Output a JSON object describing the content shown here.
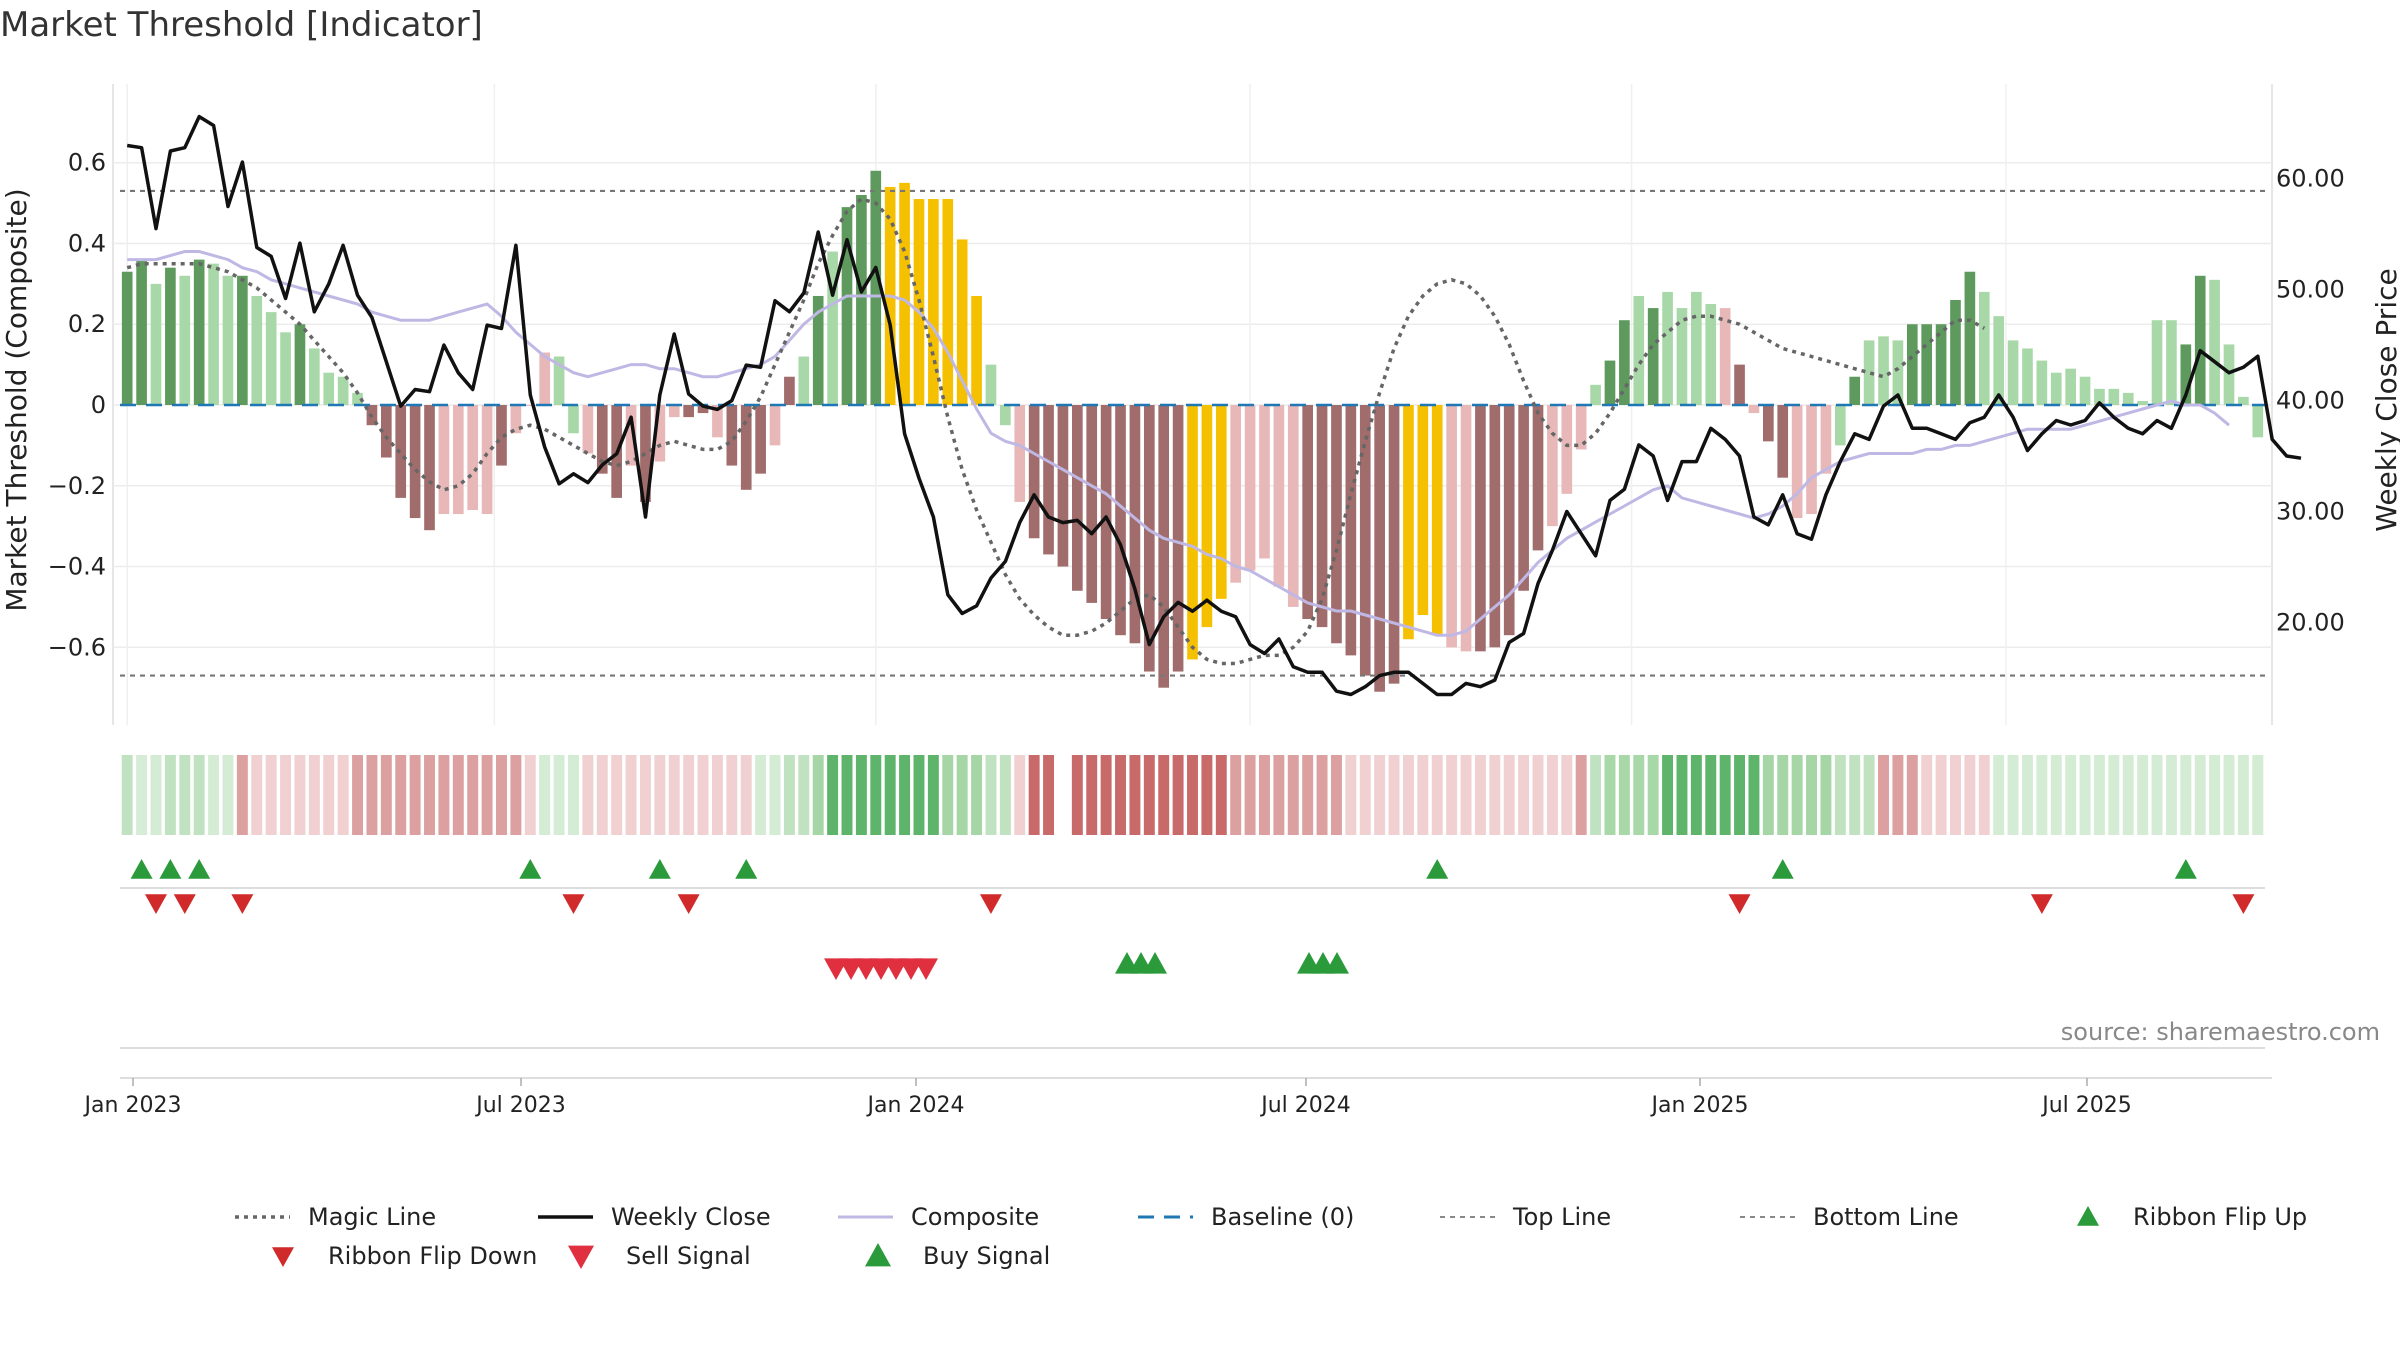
{
  "chart_data": {
    "type": "bar",
    "title": "Market Threshold [Indicator]",
    "ylabel": "Market Threshold (Composite)",
    "y2label": "Weekly Close Price",
    "source": "source: sharemaestro.com",
    "ylim": [
      -0.78,
      0.78
    ],
    "y2lim": [
      11.2,
      68.0
    ],
    "yticks": [
      "0.6",
      "0.4",
      "0.2",
      "0",
      "−0.2",
      "−0.4",
      "−0.6"
    ],
    "y2ticks": [
      "60.00",
      "50.00",
      "40.00",
      "30.00",
      "20.00"
    ],
    "xticks": [
      "Jan 2023",
      "Jul 2023",
      "Jan 2024",
      "Jul 2024",
      "Jan 2025",
      "Jul 2025"
    ],
    "top_line": 0.53,
    "bottom_line": -0.67,
    "baseline": 0,
    "grid": true,
    "legend_position": "bottom",
    "colors": {
      "dark_green": "#5e9a5e",
      "light_green": "#a8d8a8",
      "dark_red": "#a06c6c",
      "light_red": "#e8b8b8",
      "extreme": "#f5c000",
      "close": "#111111",
      "composite": "#c0b8e4",
      "magic": "#666666",
      "baseline": "#1f77b4",
      "flip_up": "#2a9a3a",
      "flip_down": "#d02a2a",
      "sell": "#e03040",
      "buy": "#2a9a3a"
    },
    "composite_bars": [
      0.33,
      0.36,
      0.3,
      0.34,
      0.32,
      0.36,
      0.35,
      0.32,
      0.32,
      0.27,
      0.23,
      0.18,
      0.2,
      0.14,
      0.08,
      0.07,
      0.03,
      -0.05,
      -0.13,
      -0.23,
      -0.28,
      -0.31,
      -0.27,
      -0.27,
      -0.26,
      -0.27,
      -0.15,
      -0.07,
      0,
      0.13,
      0.12,
      -0.07,
      -0.12,
      -0.17,
      -0.23,
      -0.15,
      -0.24,
      -0.14,
      -0.03,
      -0.03,
      -0.02,
      -0.08,
      -0.15,
      -0.21,
      -0.17,
      -0.1,
      0.07,
      0.12,
      0.27,
      0.38,
      0.49,
      0.52,
      0.58,
      0.54,
      0.55,
      0.51,
      0.51,
      0.51,
      0.41,
      0.27,
      0.1,
      -0.05,
      -0.24,
      -0.33,
      -0.37,
      -0.4,
      -0.46,
      -0.49,
      -0.53,
      -0.57,
      -0.59,
      -0.66,
      -0.7,
      -0.66,
      -0.63,
      -0.55,
      -0.48,
      -0.44,
      -0.41,
      -0.38,
      -0.45,
      -0.5,
      -0.53,
      -0.55,
      -0.59,
      -0.62,
      -0.67,
      -0.71,
      -0.69,
      -0.58,
      -0.52,
      -0.57,
      -0.6,
      -0.61,
      -0.61,
      -0.6,
      -0.57,
      -0.46,
      -0.36,
      -0.3,
      -0.22,
      -0.11,
      0.05,
      0.11,
      0.21,
      0.27,
      0.24,
      0.28,
      0.24,
      0.28,
      0.25,
      0.24,
      0.1,
      -0.02,
      -0.09,
      -0.18,
      -0.28,
      -0.27,
      -0.17,
      -0.1,
      0.07,
      0.16,
      0.17,
      0.16,
      0.2,
      0.2,
      0.2,
      0.26,
      0.33,
      0.28,
      0.22,
      0.16,
      0.14,
      0.11,
      0.08,
      0.09,
      0.07,
      0.04,
      0.04,
      0.03,
      0.01,
      0.21,
      0.21,
      0.15,
      0.32,
      0.31,
      0.15,
      0.02,
      -0.08
    ],
    "bar_colors": "GGLGLGLLGLLLGLLLLRRRRRrrrrRrrrLLrRRrRrrRRrRRRrRLGLGGGYYYYYYYLLrRRRRRRRRRRRYYYrrrrrRRRRRRRYYYrrRRRRRrrrLGGLGLLLLrRrRRrrrLGLLLGGGGGLLLLLLLLLLLLLLGGLLLLr",
    "ribbon": "LGLLLLLLRRRRRRRRRRRRRRRRRRRRRLLLRRRRRRRRRRRRLLLLGGGGGGGGGGGGLLRRR_RRRRRRRRRRRRRRRRRRRRRRRRRRRRRRRRRRRRLLLLLGGGGGGGGGGGGLLLRRRRRRRRLLLLLLLLLLLLLLLLLLLLLLLLLLLLLLL",
    "ribbon_level": [
      2,
      1,
      1,
      2,
      2,
      2,
      1,
      1,
      2,
      1,
      1,
      1,
      1,
      1,
      1,
      1,
      2,
      2,
      2,
      2,
      2,
      2,
      2,
      2,
      2,
      2,
      2,
      2,
      1,
      1,
      1,
      1,
      1,
      1,
      1,
      1,
      1,
      1,
      1,
      1,
      1,
      1,
      1,
      1,
      1,
      1,
      2,
      2,
      2,
      3,
      3,
      3,
      3,
      3,
      3,
      3,
      3,
      2,
      2,
      2,
      2,
      2,
      0,
      3,
      3,
      3,
      3,
      3,
      3,
      3,
      3,
      3,
      3,
      3,
      3,
      3,
      3,
      2,
      2,
      2,
      2,
      2,
      2,
      2,
      2,
      1,
      1,
      1,
      1,
      1,
      1,
      1,
      1,
      1,
      1,
      1,
      1,
      1,
      1,
      1,
      1,
      2,
      2,
      3,
      3,
      3,
      3,
      3,
      3,
      3,
      3,
      3,
      3,
      3,
      2,
      2,
      2,
      2,
      2,
      2,
      2,
      2,
      2,
      2,
      2,
      1,
      1,
      1,
      1,
      1,
      1,
      1,
      1,
      1,
      1,
      1,
      1,
      1,
      1,
      1,
      1,
      1,
      1,
      1,
      1,
      1,
      1,
      1,
      1,
      1,
      1,
      1,
      1,
      1,
      1,
      1,
      1,
      1
    ],
    "weekly_close": [
      63,
      62.8,
      55.5,
      62.5,
      62.8,
      65.6,
      64.8,
      57.5,
      61.5,
      53.8,
      53,
      49.2,
      54.2,
      48,
      50.5,
      54,
      49.5,
      47.5,
      43.5,
      39.5,
      41,
      40.8,
      45,
      42.5,
      41,
      46.8,
      46.5,
      54,
      40.5,
      35.8,
      32.5,
      33.4,
      32.6,
      34.2,
      35.2,
      38.5,
      29.5,
      40.5,
      46,
      40.6,
      39.5,
      39.2,
      40,
      43.2,
      43,
      49,
      48,
      49.7,
      55.2,
      49.5,
      54.5,
      49.8,
      52,
      46.8,
      37,
      33,
      29.5,
      22.5,
      20.8,
      21.5,
      24,
      25.5,
      29,
      31.5,
      29.5,
      29,
      29.2,
      28,
      29.5,
      27,
      23,
      18,
      20.5,
      21.8,
      21,
      22,
      21,
      20.5,
      18,
      17.2,
      18.5,
      16,
      15.5,
      15.5,
      13.8,
      13.5,
      14.2,
      15.2,
      15.5,
      15.5,
      14.5,
      13.5,
      13.5,
      14.5,
      14.2,
      14.8,
      18.2,
      19,
      23.5,
      26.5,
      30,
      28,
      26,
      31,
      32,
      36,
      35,
      31,
      34.5,
      34.5,
      37.5,
      36.5,
      35,
      29.5,
      28.8,
      31.5,
      28,
      27.5,
      31.5,
      34.5,
      37,
      36.5,
      39.5,
      40.5,
      37.5,
      37.5,
      37,
      36.5,
      38,
      38.5,
      40.5,
      38.5,
      35.5,
      37,
      38.2,
      37.8,
      38.2,
      39.8,
      38.5,
      37.5,
      37,
      38.2,
      37.5,
      40.5,
      44.5,
      43.5,
      42.5,
      43,
      44,
      36.5,
      35,
      34.8
    ],
    "composite_line": [
      0.36,
      0.36,
      0.36,
      0.37,
      0.38,
      0.38,
      0.37,
      0.36,
      0.34,
      0.33,
      0.31,
      0.3,
      0.29,
      0.28,
      0.27,
      0.26,
      0.25,
      0.23,
      0.22,
      0.21,
      0.21,
      0.21,
      0.22,
      0.23,
      0.24,
      0.25,
      0.22,
      0.18,
      0.15,
      0.12,
      0.1,
      0.08,
      0.07,
      0.08,
      0.09,
      0.1,
      0.1,
      0.09,
      0.09,
      0.08,
      0.07,
      0.07,
      0.08,
      0.09,
      0.1,
      0.12,
      0.16,
      0.2,
      0.23,
      0.25,
      0.27,
      0.27,
      0.27,
      0.27,
      0.26,
      0.23,
      0.19,
      0.13,
      0.06,
      -0.01,
      -0.07,
      -0.09,
      -0.1,
      -0.12,
      -0.14,
      -0.16,
      -0.18,
      -0.2,
      -0.22,
      -0.25,
      -0.28,
      -0.31,
      -0.33,
      -0.34,
      -0.35,
      -0.37,
      -0.38,
      -0.4,
      -0.41,
      -0.43,
      -0.45,
      -0.47,
      -0.49,
      -0.5,
      -0.51,
      -0.51,
      -0.52,
      -0.53,
      -0.54,
      -0.55,
      -0.56,
      -0.57,
      -0.57,
      -0.56,
      -0.53,
      -0.5,
      -0.47,
      -0.43,
      -0.39,
      -0.36,
      -0.33,
      -0.31,
      -0.29,
      -0.27,
      -0.25,
      -0.23,
      -0.21,
      -0.2,
      -0.23,
      -0.24,
      -0.25,
      -0.26,
      -0.27,
      -0.28,
      -0.27,
      -0.25,
      -0.22,
      -0.18,
      -0.16,
      -0.14,
      -0.13,
      -0.12,
      -0.12,
      -0.12,
      -0.12,
      -0.11,
      -0.11,
      -0.1,
      -0.1,
      -0.09,
      -0.08,
      -0.07,
      -0.06,
      -0.06,
      -0.06,
      -0.06,
      -0.05,
      -0.04,
      -0.03,
      -0.02,
      -0.01,
      0,
      0.01,
      0,
      0,
      -0.02,
      -0.05
    ],
    "magic_line": [
      0.34,
      0.35,
      0.35,
      0.35,
      0.35,
      0.35,
      0.34,
      0.33,
      0.31,
      0.29,
      0.26,
      0.23,
      0.2,
      0.16,
      0.12,
      0.08,
      0.03,
      -0.03,
      -0.08,
      -0.12,
      -0.16,
      -0.19,
      -0.21,
      -0.2,
      -0.17,
      -0.12,
      -0.08,
      -0.06,
      -0.05,
      -0.06,
      -0.08,
      -0.1,
      -0.12,
      -0.14,
      -0.15,
      -0.14,
      -0.12,
      -0.1,
      -0.09,
      -0.1,
      -0.11,
      -0.11,
      -0.09,
      -0.04,
      0.02,
      0.1,
      0.18,
      0.26,
      0.35,
      0.42,
      0.48,
      0.51,
      0.5,
      0.46,
      0.38,
      0.26,
      0.12,
      -0.03,
      -0.16,
      -0.26,
      -0.34,
      -0.42,
      -0.48,
      -0.52,
      -0.55,
      -0.57,
      -0.57,
      -0.56,
      -0.54,
      -0.51,
      -0.48,
      -0.47,
      -0.5,
      -0.55,
      -0.6,
      -0.63,
      -0.64,
      -0.64,
      -0.63,
      -0.62,
      -0.62,
      -0.6,
      -0.56,
      -0.48,
      -0.36,
      -0.22,
      -0.09,
      0.03,
      0.14,
      0.22,
      0.27,
      0.3,
      0.31,
      0.3,
      0.27,
      0.22,
      0.15,
      0.06,
      -0.02,
      -0.07,
      -0.1,
      -0.1,
      -0.07,
      -0.02,
      0.04,
      0.1,
      0.15,
      0.18,
      0.21,
      0.22,
      0.22,
      0.21,
      0.2,
      0.18,
      0.16,
      0.14,
      0.13,
      0.12,
      0.11,
      0.1,
      0.09,
      0.08,
      0.07,
      0.09,
      0.12,
      0.15,
      0.18,
      0.21,
      0.21,
      0.19
    ],
    "signals": {
      "ribbon_flip_up": [
        1,
        3,
        5,
        28,
        37,
        43,
        91,
        115,
        143
      ],
      "ribbon_flip_down": [
        2,
        4,
        8,
        31,
        39,
        60,
        112,
        133,
        147
      ],
      "sell": [
        47,
        48,
        49,
        50,
        51,
        52,
        53
      ],
      "buy_groups": [
        [
          67,
          68,
          69
        ],
        [
          79,
          80,
          81
        ]
      ]
    },
    "legend": [
      {
        "label": "Magic Line",
        "kind": "dotted"
      },
      {
        "label": "Weekly Close",
        "kind": "solid"
      },
      {
        "label": "Composite",
        "kind": "lavender"
      },
      {
        "label": "Baseline (0)",
        "kind": "dashed"
      },
      {
        "label": "Top Line",
        "kind": "thin-dotted"
      },
      {
        "label": "Bottom Line",
        "kind": "thin-dotted"
      },
      {
        "label": "Ribbon Flip Up",
        "kind": "tri-up"
      },
      {
        "label": "Ribbon Flip Down",
        "kind": "tri-down"
      },
      {
        "label": "Sell Signal",
        "kind": "tri-sell"
      },
      {
        "label": "Buy Signal",
        "kind": "tri-buy"
      }
    ]
  }
}
